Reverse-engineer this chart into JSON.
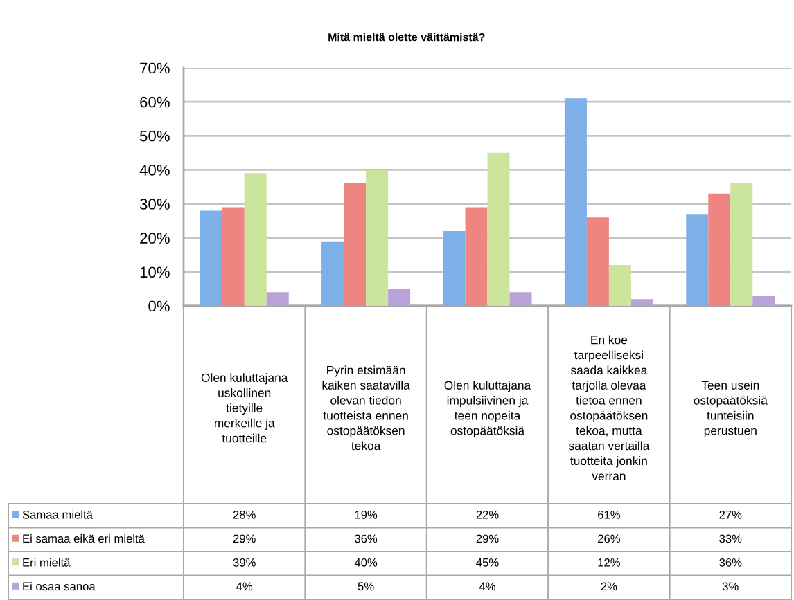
{
  "chart_data": {
    "type": "bar",
    "title": "Mitä mieltä olette väittämistä?",
    "categories": [
      "Olen kuluttajana\nuskollinen\ntietyille\nmerkeille ja\ntuotteille",
      "Pyrin etsimään\nkaiken saatavilla\nolevan tiedon\ntuotteista ennen\nostopäätöksen\ntekoa",
      "Olen kuluttajana\nimpulsiivinen ja\nteen nopeita\nostopäätöksiä",
      "En koe\ntarpeelliseksi\nsaada kaikkea\ntarjolla olevaa\ntietoa ennen\nostopäätöksen\ntekoa, mutta\nsaatan vertailla\ntuotteita jonkin\nverran",
      "Teen usein\nostopäätöksiä\ntunteisiin\nperustuen"
    ],
    "series": [
      {
        "name": "Samaa mieltä",
        "color": "#7db0e8",
        "values": [
          28,
          19,
          22,
          61,
          27
        ],
        "value_labels": [
          "28%",
          "19%",
          "22%",
          "61%",
          "27%"
        ]
      },
      {
        "name": "Ei samaa eikä eri mieltä",
        "color": "#ee8580",
        "values": [
          29,
          36,
          29,
          26,
          33
        ],
        "value_labels": [
          "29%",
          "36%",
          "29%",
          "26%",
          "33%"
        ]
      },
      {
        "name": "Eri mieltä",
        "color": "#cce59c",
        "values": [
          39,
          40,
          45,
          12,
          36
        ],
        "value_labels": [
          "39%",
          "40%",
          "45%",
          "12%",
          "36%"
        ]
      },
      {
        "name": "Ei osaa sanoa",
        "color": "#b9a2d8",
        "values": [
          4,
          5,
          4,
          2,
          3
        ],
        "value_labels": [
          "4%",
          "5%",
          "4%",
          "2%",
          "3%"
        ]
      }
    ],
    "ylim": [
      0,
      70
    ],
    "yticks": [
      {
        "value": 0,
        "label": "0%"
      },
      {
        "value": 10,
        "label": "10%"
      },
      {
        "value": 20,
        "label": "20%"
      },
      {
        "value": 30,
        "label": "30%"
      },
      {
        "value": 40,
        "label": "40%"
      },
      {
        "value": 50,
        "label": "50%"
      },
      {
        "value": 60,
        "label": "60%"
      },
      {
        "value": 70,
        "label": "70%"
      }
    ],
    "grid": "y",
    "legend": "bottom"
  }
}
